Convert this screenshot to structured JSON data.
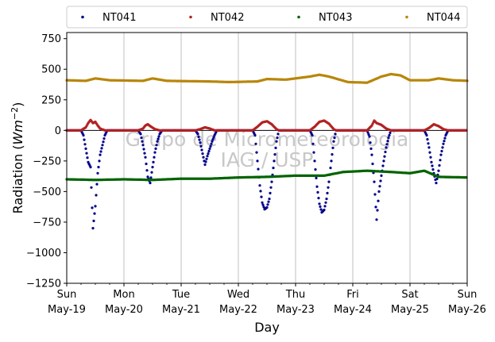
{
  "chart_data": {
    "type": "scatter",
    "xlabel": "Day",
    "ylabel": "Radiation (Wm−2)",
    "ylim": [
      -1250,
      800
    ],
    "yticks": [
      -1250,
      -1000,
      -750,
      -500,
      -250,
      0,
      250,
      500,
      750
    ],
    "xlim": [
      "2019-05-19",
      "2019-05-26"
    ],
    "xticks": [
      {
        "date": "2019-05-19",
        "weekday": "Sun",
        "day": "May-19"
      },
      {
        "date": "2019-05-20",
        "weekday": "Mon",
        "day": "May-20"
      },
      {
        "date": "2019-05-21",
        "weekday": "Tue",
        "day": "May-21"
      },
      {
        "date": "2019-05-22",
        "weekday": "Wed",
        "day": "May-22"
      },
      {
        "date": "2019-05-23",
        "weekday": "Thu",
        "day": "May-23"
      },
      {
        "date": "2019-05-24",
        "weekday": "Fri",
        "day": "May-24"
      },
      {
        "date": "2019-05-25",
        "weekday": "Sat",
        "day": "May-25"
      },
      {
        "date": "2019-05-26",
        "weekday": "Sun",
        "day": "May-26"
      }
    ],
    "grid": "vertical-major",
    "legend_position": "top",
    "watermark": [
      "Grupo de Micrometeorologia",
      "IAG / USP"
    ],
    "series": [
      {
        "name": "NT041",
        "color": "#00008b",
        "points": [
          [
            "2019-05-19 00:00",
            0
          ],
          [
            "2019-05-19 06:00",
            0
          ],
          [
            "2019-05-19 07:00",
            -40
          ],
          [
            "2019-05-19 08:00",
            -150
          ],
          [
            "2019-05-19 09:00",
            -260
          ],
          [
            "2019-05-19 10:00",
            -300
          ],
          [
            "2019-05-19 11:00",
            -800
          ],
          [
            "2019-05-19 12:00",
            -620
          ],
          [
            "2019-05-19 13:00",
            -350
          ],
          [
            "2019-05-19 14:00",
            -200
          ],
          [
            "2019-05-19 15:00",
            -120
          ],
          [
            "2019-05-19 16:00",
            -40
          ],
          [
            "2019-05-19 17:00",
            0
          ],
          [
            "2019-05-20 06:00",
            0
          ],
          [
            "2019-05-20 07:00",
            -30
          ],
          [
            "2019-05-20 08:00",
            -120
          ],
          [
            "2019-05-20 09:00",
            -220
          ],
          [
            "2019-05-20 10:00",
            -380
          ],
          [
            "2019-05-20 11:00",
            -430
          ],
          [
            "2019-05-20 12:00",
            -300
          ],
          [
            "2019-05-20 13:00",
            -180
          ],
          [
            "2019-05-20 14:00",
            -90
          ],
          [
            "2019-05-20 15:00",
            -30
          ],
          [
            "2019-05-20 16:00",
            0
          ],
          [
            "2019-05-21 06:00",
            0
          ],
          [
            "2019-05-21 07:00",
            -30
          ],
          [
            "2019-05-21 08:00",
            -100
          ],
          [
            "2019-05-21 09:00",
            -190
          ],
          [
            "2019-05-21 10:00",
            -280
          ],
          [
            "2019-05-21 11:00",
            -210
          ],
          [
            "2019-05-21 12:00",
            -150
          ],
          [
            "2019-05-21 13:00",
            -90
          ],
          [
            "2019-05-21 14:00",
            -40
          ],
          [
            "2019-05-21 15:00",
            0
          ],
          [
            "2019-05-22 06:00",
            0
          ],
          [
            "2019-05-22 07:00",
            -40
          ],
          [
            "2019-05-22 08:00",
            -250
          ],
          [
            "2019-05-22 09:00",
            -450
          ],
          [
            "2019-05-22 10:00",
            -590
          ],
          [
            "2019-05-22 11:00",
            -645
          ],
          [
            "2019-05-22 12:00",
            -630
          ],
          [
            "2019-05-22 13:00",
            -560
          ],
          [
            "2019-05-22 14:00",
            -420
          ],
          [
            "2019-05-22 15:00",
            -250
          ],
          [
            "2019-05-22 16:00",
            -90
          ],
          [
            "2019-05-22 17:00",
            0
          ],
          [
            "2019-05-23 06:00",
            0
          ],
          [
            "2019-05-23 07:00",
            -40
          ],
          [
            "2019-05-23 08:00",
            -250
          ],
          [
            "2019-05-23 09:00",
            -460
          ],
          [
            "2019-05-23 10:00",
            -600
          ],
          [
            "2019-05-23 11:00",
            -670
          ],
          [
            "2019-05-23 12:00",
            -650
          ],
          [
            "2019-05-23 13:00",
            -560
          ],
          [
            "2019-05-23 14:00",
            -420
          ],
          [
            "2019-05-23 15:00",
            -250
          ],
          [
            "2019-05-23 16:00",
            -90
          ],
          [
            "2019-05-23 17:00",
            0
          ],
          [
            "2019-05-24 06:00",
            0
          ],
          [
            "2019-05-24 07:00",
            -50
          ],
          [
            "2019-05-24 08:00",
            -200
          ],
          [
            "2019-05-24 09:00",
            -420
          ],
          [
            "2019-05-24 10:00",
            -730
          ],
          [
            "2019-05-24 11:00",
            -500
          ],
          [
            "2019-05-24 12:00",
            -370
          ],
          [
            "2019-05-24 13:00",
            -250
          ],
          [
            "2019-05-24 14:00",
            -140
          ],
          [
            "2019-05-24 15:00",
            -60
          ],
          [
            "2019-05-24 16:00",
            0
          ],
          [
            "2019-05-25 06:00",
            0
          ],
          [
            "2019-05-25 07:00",
            -40
          ],
          [
            "2019-05-25 08:00",
            -140
          ],
          [
            "2019-05-25 09:00",
            -260
          ],
          [
            "2019-05-25 10:00",
            -350
          ],
          [
            "2019-05-25 11:00",
            -430
          ],
          [
            "2019-05-25 12:00",
            -330
          ],
          [
            "2019-05-25 13:00",
            -200
          ],
          [
            "2019-05-25 14:00",
            -110
          ],
          [
            "2019-05-25 15:00",
            -40
          ],
          [
            "2019-05-25 16:00",
            0
          ],
          [
            "2019-05-26 00:00",
            0
          ]
        ]
      },
      {
        "name": "NT042",
        "color": "#b22222",
        "points": [
          [
            "2019-05-19 00:00",
            0
          ],
          [
            "2019-05-19 06:00",
            0
          ],
          [
            "2019-05-19 08:00",
            25
          ],
          [
            "2019-05-19 09:00",
            60
          ],
          [
            "2019-05-19 10:00",
            85
          ],
          [
            "2019-05-19 11:00",
            60
          ],
          [
            "2019-05-19 12:00",
            70
          ],
          [
            "2019-05-19 13:00",
            40
          ],
          [
            "2019-05-19 14:00",
            15
          ],
          [
            "2019-05-19 16:00",
            0
          ],
          [
            "2019-05-20 06:00",
            0
          ],
          [
            "2019-05-20 08:00",
            15
          ],
          [
            "2019-05-20 09:00",
            40
          ],
          [
            "2019-05-20 10:00",
            50
          ],
          [
            "2019-05-20 11:00",
            35
          ],
          [
            "2019-05-20 13:00",
            10
          ],
          [
            "2019-05-20 15:00",
            0
          ],
          [
            "2019-05-21 06:00",
            0
          ],
          [
            "2019-05-21 08:00",
            10
          ],
          [
            "2019-05-21 10:00",
            25
          ],
          [
            "2019-05-21 12:00",
            15
          ],
          [
            "2019-05-21 14:00",
            0
          ],
          [
            "2019-05-22 06:00",
            0
          ],
          [
            "2019-05-22 08:00",
            30
          ],
          [
            "2019-05-22 10:00",
            65
          ],
          [
            "2019-05-22 12:00",
            75
          ],
          [
            "2019-05-22 14:00",
            50
          ],
          [
            "2019-05-22 16:00",
            10
          ],
          [
            "2019-05-22 17:00",
            0
          ],
          [
            "2019-05-23 06:00",
            0
          ],
          [
            "2019-05-23 08:00",
            30
          ],
          [
            "2019-05-23 10:00",
            70
          ],
          [
            "2019-05-23 12:00",
            80
          ],
          [
            "2019-05-23 14:00",
            55
          ],
          [
            "2019-05-23 16:00",
            10
          ],
          [
            "2019-05-23 17:00",
            0
          ],
          [
            "2019-05-24 06:00",
            0
          ],
          [
            "2019-05-24 08:00",
            40
          ],
          [
            "2019-05-24 09:00",
            80
          ],
          [
            "2019-05-24 10:00",
            60
          ],
          [
            "2019-05-24 12:00",
            45
          ],
          [
            "2019-05-24 14:00",
            15
          ],
          [
            "2019-05-24 16:00",
            0
          ],
          [
            "2019-05-25 06:00",
            0
          ],
          [
            "2019-05-25 08:00",
            20
          ],
          [
            "2019-05-25 10:00",
            50
          ],
          [
            "2019-05-25 12:00",
            35
          ],
          [
            "2019-05-25 14:00",
            10
          ],
          [
            "2019-05-25 16:00",
            0
          ],
          [
            "2019-05-26 00:00",
            0
          ]
        ]
      },
      {
        "name": "NT043",
        "color": "#006400",
        "points": [
          [
            "2019-05-19 00:00",
            -400
          ],
          [
            "2019-05-19 12:00",
            -405
          ],
          [
            "2019-05-20 00:00",
            -400
          ],
          [
            "2019-05-20 12:00",
            -405
          ],
          [
            "2019-05-21 00:00",
            -395
          ],
          [
            "2019-05-21 12:00",
            -395
          ],
          [
            "2019-05-22 00:00",
            -385
          ],
          [
            "2019-05-22 12:00",
            -380
          ],
          [
            "2019-05-23 00:00",
            -370
          ],
          [
            "2019-05-23 12:00",
            -370
          ],
          [
            "2019-05-23 20:00",
            -340
          ],
          [
            "2019-05-24 06:00",
            -330
          ],
          [
            "2019-05-24 16:00",
            -340
          ],
          [
            "2019-05-25 00:00",
            -350
          ],
          [
            "2019-05-25 06:00",
            -330
          ],
          [
            "2019-05-25 12:00",
            -380
          ],
          [
            "2019-05-26 00:00",
            -385
          ]
        ]
      },
      {
        "name": "NT044",
        "color": "#b8860b",
        "points": [
          [
            "2019-05-19 00:00",
            410
          ],
          [
            "2019-05-19 08:00",
            405
          ],
          [
            "2019-05-19 12:00",
            425
          ],
          [
            "2019-05-19 18:00",
            410
          ],
          [
            "2019-05-20 08:00",
            405
          ],
          [
            "2019-05-20 12:00",
            425
          ],
          [
            "2019-05-20 18:00",
            405
          ],
          [
            "2019-05-21 12:00",
            400
          ],
          [
            "2019-05-21 20:00",
            395
          ],
          [
            "2019-05-22 08:00",
            400
          ],
          [
            "2019-05-22 12:00",
            420
          ],
          [
            "2019-05-22 20:00",
            415
          ],
          [
            "2019-05-23 06:00",
            440
          ],
          [
            "2019-05-23 10:00",
            455
          ],
          [
            "2019-05-23 14:00",
            440
          ],
          [
            "2019-05-23 22:00",
            395
          ],
          [
            "2019-05-24 06:00",
            390
          ],
          [
            "2019-05-24 12:00",
            440
          ],
          [
            "2019-05-24 16:00",
            460
          ],
          [
            "2019-05-24 20:00",
            450
          ],
          [
            "2019-05-25 00:00",
            410
          ],
          [
            "2019-05-25 08:00",
            410
          ],
          [
            "2019-05-25 12:00",
            425
          ],
          [
            "2019-05-25 18:00",
            410
          ],
          [
            "2019-05-26 08:00",
            400
          ],
          [
            "2019-05-26 12:00",
            395
          ],
          [
            "2019-05-26 18:00",
            390
          ],
          [
            "2019-05-27 00:00",
            385
          ]
        ]
      }
    ]
  }
}
